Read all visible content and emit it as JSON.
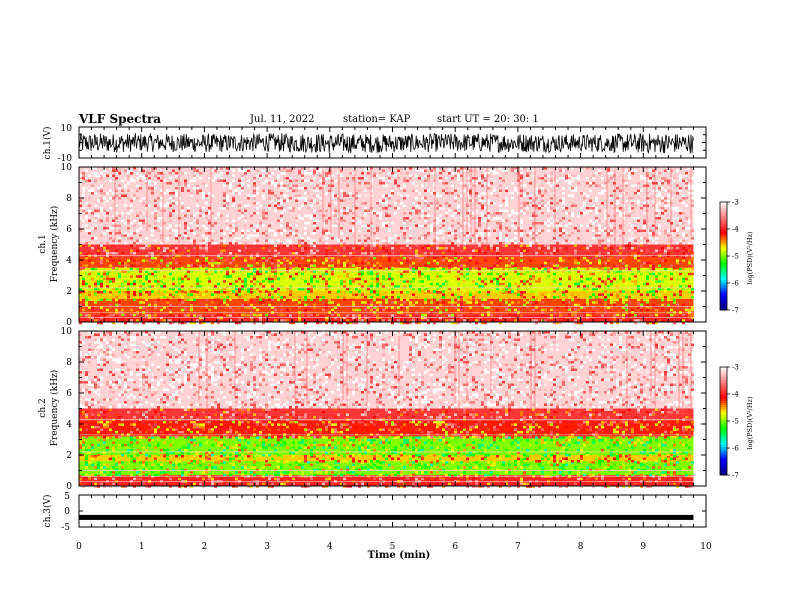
{
  "header": {
    "title": "VLF Spectra",
    "date": "Jul. 11, 2022",
    "station": "station= KAP",
    "start": "start UT =  20: 30: 1"
  },
  "colors": {
    "background": "#ffffff",
    "axis": "#000000",
    "trace": "#000000",
    "colormap": [
      "#000080",
      "#0000ff",
      "#00ffff",
      "#00ff00",
      "#ffff00",
      "#ff0000",
      "#ff8080",
      "#ffffff"
    ]
  },
  "chart_data": [
    {
      "type": "line",
      "name": "ch1-waveform",
      "ylabel": "ch.1(V)",
      "ylim": [
        -10,
        10
      ],
      "yticks": [
        "10",
        "-10"
      ],
      "xlim": [
        0,
        10
      ],
      "description_of_trace": "dense noisy waveform",
      "x": [
        0,
        1,
        2,
        3,
        4,
        5,
        6,
        7,
        8,
        9,
        9.8
      ],
      "y_envelope_low": [
        -7,
        -6,
        -6.5,
        -6,
        -7,
        -6.5,
        -6,
        -6.5,
        -6,
        -7,
        -7
      ],
      "y_envelope_high": [
        6,
        6,
        5.5,
        6,
        6,
        5.5,
        6,
        6,
        5.5,
        6,
        6
      ]
    },
    {
      "type": "heatmap",
      "name": "ch1-spectrogram",
      "ylabel": "ch.1",
      "ylabel2": "Frequency (kHz)",
      "ylim": [
        0,
        10
      ],
      "yticks": [
        "0",
        "2",
        "4",
        "6",
        "8",
        "10"
      ],
      "xlim": [
        0,
        10
      ],
      "data_end_min": 9.8,
      "band_log_psd": [
        {
          "f_low": 0,
          "f_high": 0.5,
          "value": -4.0
        },
        {
          "f_low": 0.5,
          "f_high": 1.5,
          "value": -4.3
        },
        {
          "f_low": 1.5,
          "f_high": 2.0,
          "value": -4.6
        },
        {
          "f_low": 2.0,
          "f_high": 3.5,
          "value": -4.8
        },
        {
          "f_low": 3.5,
          "f_high": 4.2,
          "value": -4.3
        },
        {
          "f_low": 4.2,
          "f_high": 5.0,
          "value": -3.9
        },
        {
          "f_low": 5.0,
          "f_high": 10.0,
          "value": -3.2
        }
      ],
      "colorbar": {
        "label": "log(PSD)(V²/Hz)",
        "range": [
          -7,
          -3
        ],
        "ticks": [
          "-3",
          "-4",
          "-5",
          "-6",
          "-7"
        ]
      }
    },
    {
      "type": "heatmap",
      "name": "ch2-spectrogram",
      "ylabel": "ch.2",
      "ylabel2": "Frequency (kHz)",
      "ylim": [
        0,
        10
      ],
      "yticks": [
        "0",
        "2",
        "4",
        "6",
        "8",
        "10"
      ],
      "xlim": [
        0,
        10
      ],
      "data_end_min": 9.8,
      "band_log_psd": [
        {
          "f_low": 0,
          "f_high": 0.7,
          "value": -4.0
        },
        {
          "f_low": 0.7,
          "f_high": 1.6,
          "value": -5.0
        },
        {
          "f_low": 1.6,
          "f_high": 2.0,
          "value": -4.6
        },
        {
          "f_low": 2.0,
          "f_high": 3.2,
          "value": -5.0
        },
        {
          "f_low": 3.2,
          "f_high": 4.2,
          "value": -4.2
        },
        {
          "f_low": 4.2,
          "f_high": 5.0,
          "value": -3.9
        },
        {
          "f_low": 5.0,
          "f_high": 10.0,
          "value": -3.2
        }
      ],
      "colorbar": {
        "label": "log(PSD)(V²/Hz)",
        "range": [
          -7,
          -3
        ],
        "ticks": [
          "-3",
          "-4",
          "-5",
          "-6",
          "-7"
        ]
      }
    },
    {
      "type": "line",
      "name": "ch3-waveform",
      "ylabel": "ch.3(V)",
      "ylim": [
        -5,
        5
      ],
      "yticks": [
        "5",
        "0",
        "-5"
      ],
      "xlim": [
        0,
        10
      ],
      "xlabel": "Time (min)",
      "xticks": [
        "0",
        "1",
        "2",
        "3",
        "4",
        "5",
        "6",
        "7",
        "8",
        "9",
        "10"
      ],
      "x": [
        0,
        9.8
      ],
      "y": [
        -2,
        -2
      ]
    }
  ]
}
